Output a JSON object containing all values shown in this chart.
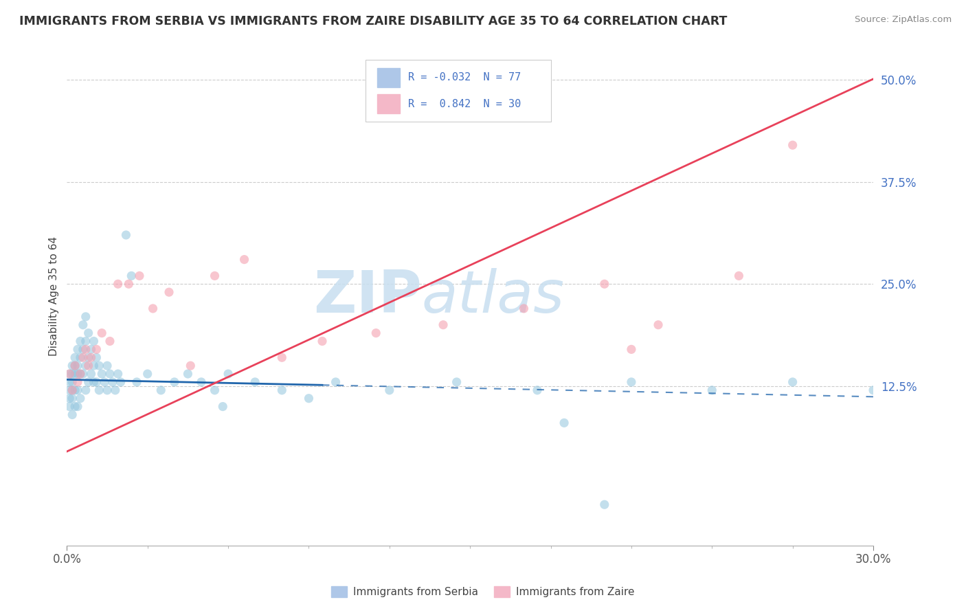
{
  "title": "IMMIGRANTS FROM SERBIA VS IMMIGRANTS FROM ZAIRE DISABILITY AGE 35 TO 64 CORRELATION CHART",
  "source": "Source: ZipAtlas.com",
  "ylabel": "Disability Age 35 to 64",
  "xlim": [
    0.0,
    0.3
  ],
  "ylim": [
    -0.07,
    0.54
  ],
  "ytick_vals_right": [
    0.5,
    0.375,
    0.25,
    0.125
  ],
  "ytick_labels_right": [
    "50.0%",
    "37.5%",
    "25.0%",
    "12.5%"
  ],
  "serbia_R": -0.032,
  "serbia_N": 77,
  "zaire_R": 0.842,
  "zaire_N": 30,
  "serbia_color": "#92c5de",
  "zaire_color": "#f4a582",
  "serbia_line_color": "#2166ac",
  "zaire_line_color": "#e8415a",
  "grid_color": "#cccccc",
  "right_tick_color": "#4472c4",
  "serbia_line_solid_end": 0.095,
  "serbia_line_intercept": 0.133,
  "serbia_line_slope": -0.07,
  "zaire_line_intercept": 0.045,
  "zaire_line_slope": 1.52,
  "watermark_color": "#c8dff0",
  "serbia_x": [
    0.001,
    0.001,
    0.001,
    0.001,
    0.001,
    0.002,
    0.002,
    0.002,
    0.002,
    0.002,
    0.002,
    0.003,
    0.003,
    0.003,
    0.003,
    0.003,
    0.004,
    0.004,
    0.004,
    0.004,
    0.004,
    0.005,
    0.005,
    0.005,
    0.005,
    0.006,
    0.006,
    0.006,
    0.007,
    0.007,
    0.007,
    0.007,
    0.008,
    0.008,
    0.008,
    0.009,
    0.009,
    0.01,
    0.01,
    0.01,
    0.011,
    0.011,
    0.012,
    0.012,
    0.013,
    0.014,
    0.015,
    0.015,
    0.016,
    0.017,
    0.018,
    0.019,
    0.02,
    0.022,
    0.024,
    0.026,
    0.03,
    0.035,
    0.04,
    0.045,
    0.05,
    0.055,
    0.06,
    0.07,
    0.08,
    0.09,
    0.1,
    0.12,
    0.145,
    0.175,
    0.21,
    0.24,
    0.27,
    0.3,
    0.2,
    0.185,
    0.058
  ],
  "serbia_y": [
    0.14,
    0.13,
    0.12,
    0.11,
    0.1,
    0.15,
    0.14,
    0.13,
    0.12,
    0.11,
    0.09,
    0.16,
    0.15,
    0.14,
    0.12,
    0.1,
    0.17,
    0.15,
    0.14,
    0.12,
    0.1,
    0.18,
    0.16,
    0.14,
    0.11,
    0.2,
    0.17,
    0.14,
    0.21,
    0.18,
    0.15,
    0.12,
    0.19,
    0.16,
    0.13,
    0.17,
    0.14,
    0.18,
    0.15,
    0.13,
    0.16,
    0.13,
    0.15,
    0.12,
    0.14,
    0.13,
    0.15,
    0.12,
    0.14,
    0.13,
    0.12,
    0.14,
    0.13,
    0.31,
    0.26,
    0.13,
    0.14,
    0.12,
    0.13,
    0.14,
    0.13,
    0.12,
    0.14,
    0.13,
    0.12,
    0.11,
    0.13,
    0.12,
    0.13,
    0.12,
    0.13,
    0.12,
    0.13,
    0.12,
    -0.02,
    0.08,
    0.1
  ],
  "zaire_x": [
    0.001,
    0.002,
    0.003,
    0.004,
    0.005,
    0.006,
    0.007,
    0.008,
    0.009,
    0.011,
    0.013,
    0.016,
    0.019,
    0.023,
    0.027,
    0.032,
    0.038,
    0.046,
    0.055,
    0.066,
    0.08,
    0.095,
    0.115,
    0.14,
    0.17,
    0.2,
    0.21,
    0.22,
    0.25,
    0.27
  ],
  "zaire_y": [
    0.14,
    0.12,
    0.15,
    0.13,
    0.14,
    0.16,
    0.17,
    0.15,
    0.16,
    0.17,
    0.19,
    0.18,
    0.25,
    0.25,
    0.26,
    0.22,
    0.24,
    0.15,
    0.26,
    0.28,
    0.16,
    0.18,
    0.19,
    0.2,
    0.22,
    0.25,
    0.17,
    0.2,
    0.26,
    0.42
  ]
}
